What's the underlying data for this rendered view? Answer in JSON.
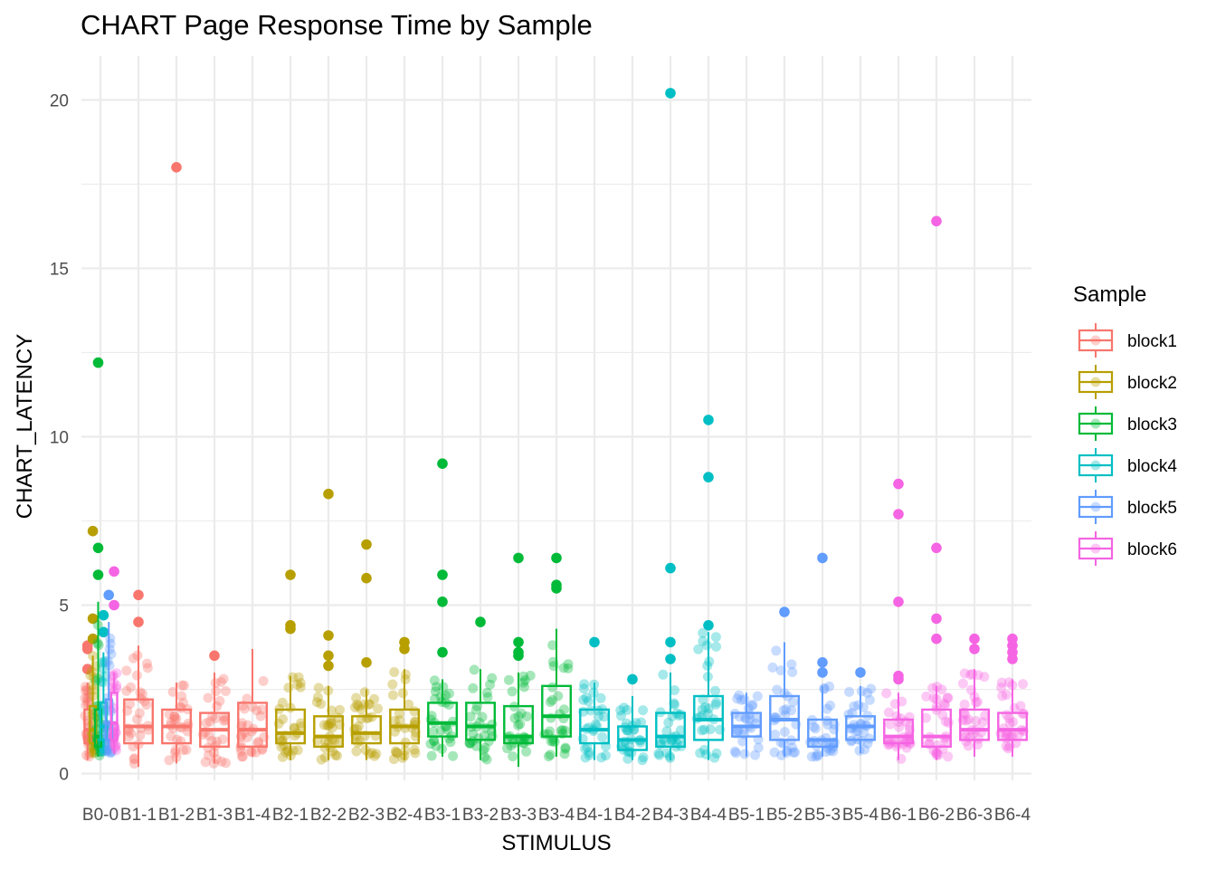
{
  "chart_data": {
    "type": "boxplot",
    "title": "CHART Page Response Time by Sample",
    "xlabel": "STIMULUS",
    "ylabel": "CHART_LATENCY",
    "ylim": [
      -0.2,
      21.3
    ],
    "yticks": [
      0,
      5,
      10,
      15,
      20
    ],
    "grid": true,
    "legend": {
      "title": "Sample",
      "position": "right"
    },
    "series": [
      {
        "name": "block1",
        "color": "#F8766D"
      },
      {
        "name": "block2",
        "color": "#B79F00"
      },
      {
        "name": "block3",
        "color": "#00BA38"
      },
      {
        "name": "block4",
        "color": "#00BFC4"
      },
      {
        "name": "block5",
        "color": "#619CFF"
      },
      {
        "name": "block6",
        "color": "#F564E3"
      }
    ],
    "categories": [
      "B0-0",
      "B1-1",
      "B1-2",
      "B1-3",
      "B1-4",
      "B2-1",
      "B2-2",
      "B2-3",
      "B2-4",
      "B3-1",
      "B3-2",
      "B3-3",
      "B3-4",
      "B4-1",
      "B4-2",
      "B4-3",
      "B4-4",
      "B5-1",
      "B5-2",
      "B5-3",
      "B5-4",
      "B6-1",
      "B6-2",
      "B6-3",
      "B6-4"
    ],
    "boxes": [
      {
        "category": "B0-0",
        "series": "block1",
        "offset": -0.34,
        "q1": 0.9,
        "median": 1.3,
        "q3": 1.9,
        "whisker_low": 0.4,
        "whisker_high": 2.7,
        "outliers": [
          3.1,
          3.7,
          3.8
        ]
      },
      {
        "category": "B0-0",
        "series": "block2",
        "offset": -0.2,
        "q1": 0.9,
        "median": 1.3,
        "q3": 2.0,
        "whisker_low": 0.5,
        "whisker_high": 3.5,
        "outliers": [
          4.0,
          4.6,
          7.2
        ]
      },
      {
        "category": "B0-0",
        "series": "block3",
        "offset": -0.06,
        "q1": 0.8,
        "median": 1.1,
        "q3": 1.9,
        "whisker_low": 0.5,
        "whisker_high": 5.1,
        "outliers": [
          5.9,
          6.7,
          12.2
        ]
      },
      {
        "category": "B0-0",
        "series": "block4",
        "offset": 0.08,
        "q1": 1.0,
        "median": 1.4,
        "q3": 2.1,
        "whisker_low": 0.6,
        "whisker_high": 3.6,
        "outliers": [
          4.2,
          4.7
        ]
      },
      {
        "category": "B0-0",
        "series": "block5",
        "offset": 0.22,
        "q1": 1.0,
        "median": 1.5,
        "q3": 2.2,
        "whisker_low": 0.6,
        "whisker_high": 4.5,
        "outliers": [
          5.3
        ]
      },
      {
        "category": "B0-0",
        "series": "block6",
        "offset": 0.36,
        "q1": 1.0,
        "median": 1.5,
        "q3": 2.4,
        "whisker_low": 0.6,
        "whisker_high": 3.0,
        "outliers": [
          5.0,
          6.0
        ]
      },
      {
        "category": "B1-1",
        "series": "block1",
        "q1": 0.9,
        "median": 1.4,
        "q3": 2.2,
        "whisker_low": 0.2,
        "whisker_high": 3.8,
        "outliers": [
          4.5,
          5.3
        ]
      },
      {
        "category": "B1-2",
        "series": "block1",
        "q1": 0.9,
        "median": 1.4,
        "q3": 1.9,
        "whisker_low": 0.3,
        "whisker_high": 2.7,
        "outliers": [
          18.0
        ]
      },
      {
        "category": "B1-3",
        "series": "block1",
        "q1": 0.8,
        "median": 1.3,
        "q3": 1.8,
        "whisker_low": 0.3,
        "whisker_high": 3.0,
        "outliers": [
          3.5
        ]
      },
      {
        "category": "B1-4",
        "series": "block1",
        "q1": 0.8,
        "median": 1.3,
        "q3": 2.1,
        "whisker_low": 0.5,
        "whisker_high": 3.7,
        "outliers": []
      },
      {
        "category": "B2-1",
        "series": "block2",
        "q1": 0.9,
        "median": 1.2,
        "q3": 1.9,
        "whisker_low": 0.4,
        "whisker_high": 2.9,
        "outliers": [
          4.3,
          4.4,
          5.9
        ]
      },
      {
        "category": "B2-2",
        "series": "block2",
        "q1": 0.8,
        "median": 1.1,
        "q3": 1.7,
        "whisker_low": 0.4,
        "whisker_high": 2.6,
        "outliers": [
          3.2,
          3.5,
          4.1,
          8.3
        ]
      },
      {
        "category": "B2-3",
        "series": "block2",
        "q1": 0.9,
        "median": 1.2,
        "q3": 1.7,
        "whisker_low": 0.4,
        "whisker_high": 2.5,
        "outliers": [
          3.3,
          5.8,
          6.8
        ]
      },
      {
        "category": "B2-4",
        "series": "block2",
        "q1": 0.9,
        "median": 1.4,
        "q3": 1.9,
        "whisker_low": 0.4,
        "whisker_high": 3.1,
        "outliers": [
          3.7,
          3.9
        ]
      },
      {
        "category": "B3-1",
        "series": "block3",
        "q1": 1.1,
        "median": 1.5,
        "q3": 2.1,
        "whisker_low": 0.5,
        "whisker_high": 2.8,
        "outliers": [
          3.6,
          5.1,
          5.9,
          9.2
        ]
      },
      {
        "category": "B3-2",
        "series": "block3",
        "q1": 1.0,
        "median": 1.4,
        "q3": 2.1,
        "whisker_low": 0.4,
        "whisker_high": 3.1,
        "outliers": [
          4.5
        ]
      },
      {
        "category": "B3-3",
        "series": "block3",
        "q1": 0.9,
        "median": 1.1,
        "q3": 2.0,
        "whisker_low": 0.2,
        "whisker_high": 3.0,
        "outliers": [
          3.5,
          3.6,
          3.9,
          6.4
        ]
      },
      {
        "category": "B3-4",
        "series": "block3",
        "q1": 1.1,
        "median": 1.7,
        "q3": 2.6,
        "whisker_low": 0.5,
        "whisker_high": 4.3,
        "outliers": [
          5.5,
          5.6,
          6.4
        ]
      },
      {
        "category": "B4-1",
        "series": "block4",
        "q1": 0.9,
        "median": 1.3,
        "q3": 1.9,
        "whisker_low": 0.4,
        "whisker_high": 2.7,
        "outliers": [
          3.9
        ]
      },
      {
        "category": "B4-2",
        "series": "block4",
        "q1": 0.7,
        "median": 1.0,
        "q3": 1.4,
        "whisker_low": 0.4,
        "whisker_high": 2.3,
        "outliers": [
          2.8
        ]
      },
      {
        "category": "B4-3",
        "series": "block4",
        "q1": 0.8,
        "median": 1.1,
        "q3": 1.8,
        "whisker_low": 0.4,
        "whisker_high": 3.0,
        "outliers": [
          3.4,
          3.9,
          6.1,
          20.2
        ]
      },
      {
        "category": "B4-4",
        "series": "block4",
        "q1": 1.0,
        "median": 1.6,
        "q3": 2.3,
        "whisker_low": 0.4,
        "whisker_high": 4.2,
        "outliers": [
          4.4,
          8.8,
          10.5
        ]
      },
      {
        "category": "B5-1",
        "series": "block5",
        "q1": 1.1,
        "median": 1.4,
        "q3": 1.8,
        "whisker_low": 0.5,
        "whisker_high": 2.4,
        "outliers": []
      },
      {
        "category": "B5-2",
        "series": "block5",
        "q1": 1.0,
        "median": 1.6,
        "q3": 2.3,
        "whisker_low": 0.5,
        "whisker_high": 3.9,
        "outliers": [
          4.8
        ]
      },
      {
        "category": "B5-3",
        "series": "block5",
        "q1": 0.8,
        "median": 1.0,
        "q3": 1.6,
        "whisker_low": 0.5,
        "whisker_high": 2.6,
        "outliers": [
          3.0,
          3.3,
          6.4
        ]
      },
      {
        "category": "B5-4",
        "series": "block5",
        "q1": 1.0,
        "median": 1.4,
        "q3": 1.7,
        "whisker_low": 0.6,
        "whisker_high": 2.6,
        "outliers": [
          3.0
        ]
      },
      {
        "category": "B6-1",
        "series": "block6",
        "q1": 0.9,
        "median": 1.1,
        "q3": 1.6,
        "whisker_low": 0.4,
        "whisker_high": 2.4,
        "outliers": [
          2.8,
          2.9,
          5.1,
          7.7,
          8.6
        ]
      },
      {
        "category": "B6-2",
        "series": "block6",
        "q1": 0.8,
        "median": 1.1,
        "q3": 1.9,
        "whisker_low": 0.4,
        "whisker_high": 2.6,
        "outliers": [
          4.0,
          4.6,
          6.7,
          16.4
        ]
      },
      {
        "category": "B6-3",
        "series": "block6",
        "q1": 1.0,
        "median": 1.3,
        "q3": 1.9,
        "whisker_low": 0.5,
        "whisker_high": 3.1,
        "outliers": [
          3.7,
          4.0
        ]
      },
      {
        "category": "B6-4",
        "series": "block6",
        "q1": 1.0,
        "median": 1.3,
        "q3": 1.8,
        "whisker_low": 0.5,
        "whisker_high": 2.8,
        "outliers": [
          3.4,
          3.6,
          3.8,
          4.0
        ]
      }
    ]
  }
}
